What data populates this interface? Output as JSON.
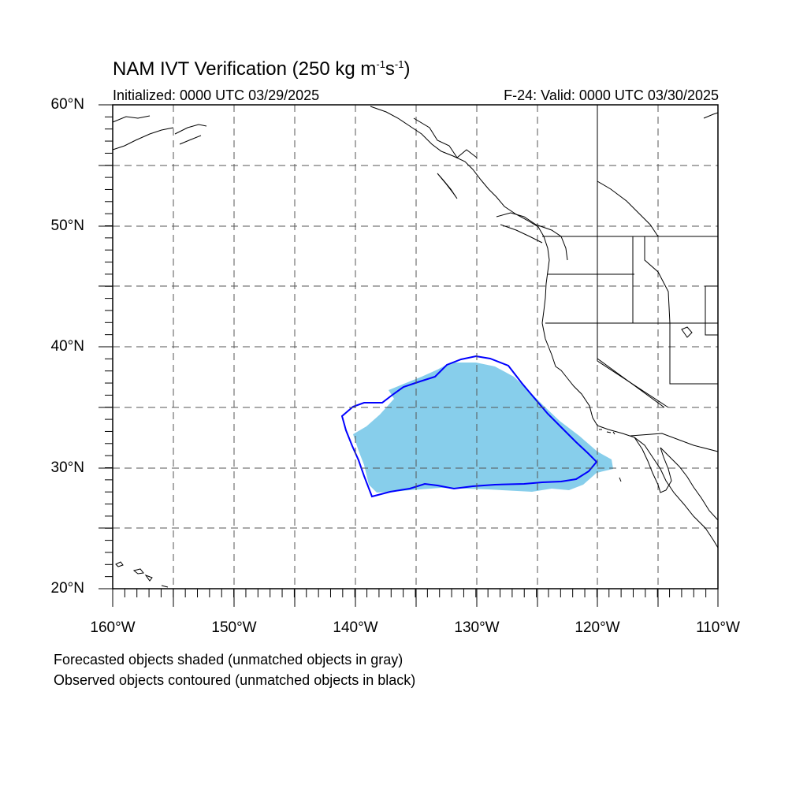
{
  "title": {
    "main": "NAM IVT Verification (250 kg m",
    "sup1": "-1",
    "mid": "s",
    "sup2": "-1",
    "end": ")"
  },
  "subtitle": {
    "initialized": "Initialized: 0000 UTC 03/29/2025",
    "valid": "F-24: Valid: 0000 UTC 03/30/2025"
  },
  "axes": {
    "lat_labels": [
      "60°N",
      "50°N",
      "40°N",
      "30°N",
      "20°N"
    ],
    "lon_labels": [
      "160°W",
      "150°W",
      "140°W",
      "130°W",
      "120°W",
      "110°W"
    ],
    "lat_range": [
      20,
      60
    ],
    "lon_range": [
      -160,
      -110
    ],
    "gridlines": "dashed"
  },
  "legend_notes": {
    "line1": "Forecasted objects shaded (unmatched objects in gray)",
    "line2": "Observed objects contoured (unmatched objects in black)"
  },
  "colors": {
    "forecast_fill": "#87ceeb",
    "observed_contour": "#0000ff",
    "coastline": "#000000",
    "grid": "#555555"
  }
}
